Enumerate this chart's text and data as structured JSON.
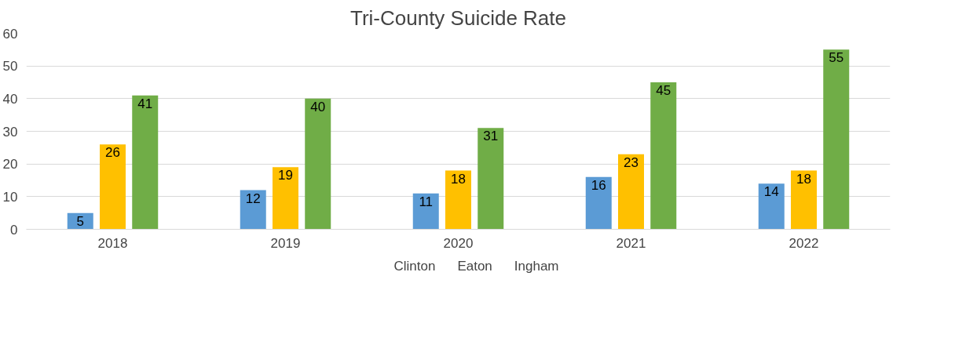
{
  "chart_data": {
    "type": "bar",
    "title": "Tri-County Suicide Rate",
    "categories": [
      "2018",
      "2019",
      "2020",
      "2021",
      "2022"
    ],
    "series": [
      {
        "name": "Clinton",
        "color": "#5b9bd5",
        "values": [
          5,
          12,
          11,
          16,
          14
        ]
      },
      {
        "name": "Eaton",
        "color": "#ffc000",
        "values": [
          26,
          19,
          18,
          23,
          18
        ]
      },
      {
        "name": "Ingham",
        "color": "#70ad47",
        "values": [
          41,
          40,
          31,
          45,
          55
        ]
      }
    ],
    "ylim": [
      0,
      60
    ],
    "yticks": [
      0,
      10,
      20,
      30,
      40,
      50,
      60
    ],
    "grid": "y",
    "legend": "bottom",
    "data_labels": true
  }
}
